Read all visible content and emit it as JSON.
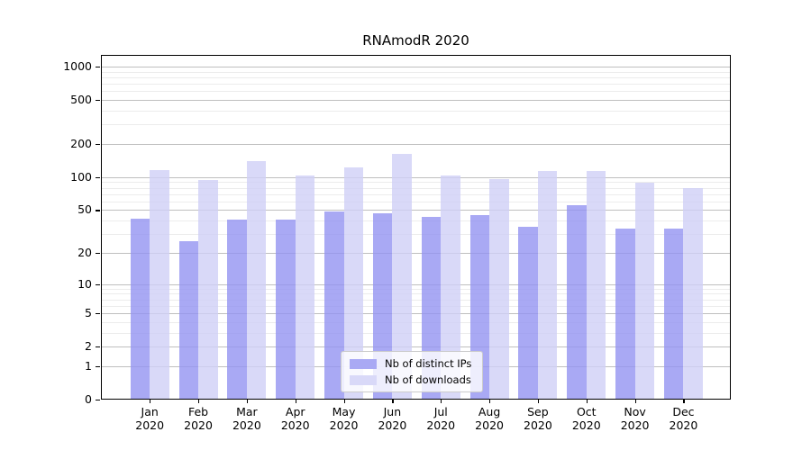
{
  "chart_data": {
    "type": "bar",
    "title": "RNAmodR 2020",
    "categories": [
      "Jan",
      "Feb",
      "Mar",
      "Apr",
      "May",
      "Jun",
      "Jul",
      "Aug",
      "Sep",
      "Oct",
      "Nov",
      "Dec"
    ],
    "year": "2020",
    "series": [
      {
        "name": "Nb of distinct IPs",
        "color": "#a9a9f4",
        "fill_rgba": "rgba(148,148,241,0.8)",
        "values": [
          42,
          26,
          41,
          41,
          49,
          47,
          43,
          45,
          35,
          55,
          34,
          34
        ]
      },
      {
        "name": "Nb of downloads",
        "color": "#d9d9f8",
        "fill_rgba": "rgba(208,208,246,0.8)",
        "values": [
          117,
          95,
          140,
          103,
          124,
          162,
          103,
          96,
          113,
          113,
          90,
          80
        ]
      }
    ],
    "yscale": "log1p",
    "yticks": [
      0,
      1,
      2,
      5,
      10,
      20,
      50,
      100,
      200,
      500,
      1000
    ],
    "yticks_minor": [
      3,
      4,
      6,
      7,
      8,
      9,
      30,
      40,
      60,
      70,
      80,
      90,
      300,
      400,
      600,
      700,
      800,
      900
    ],
    "ylim": [
      0,
      1276
    ],
    "grid": true,
    "legend_position": "lower center"
  }
}
